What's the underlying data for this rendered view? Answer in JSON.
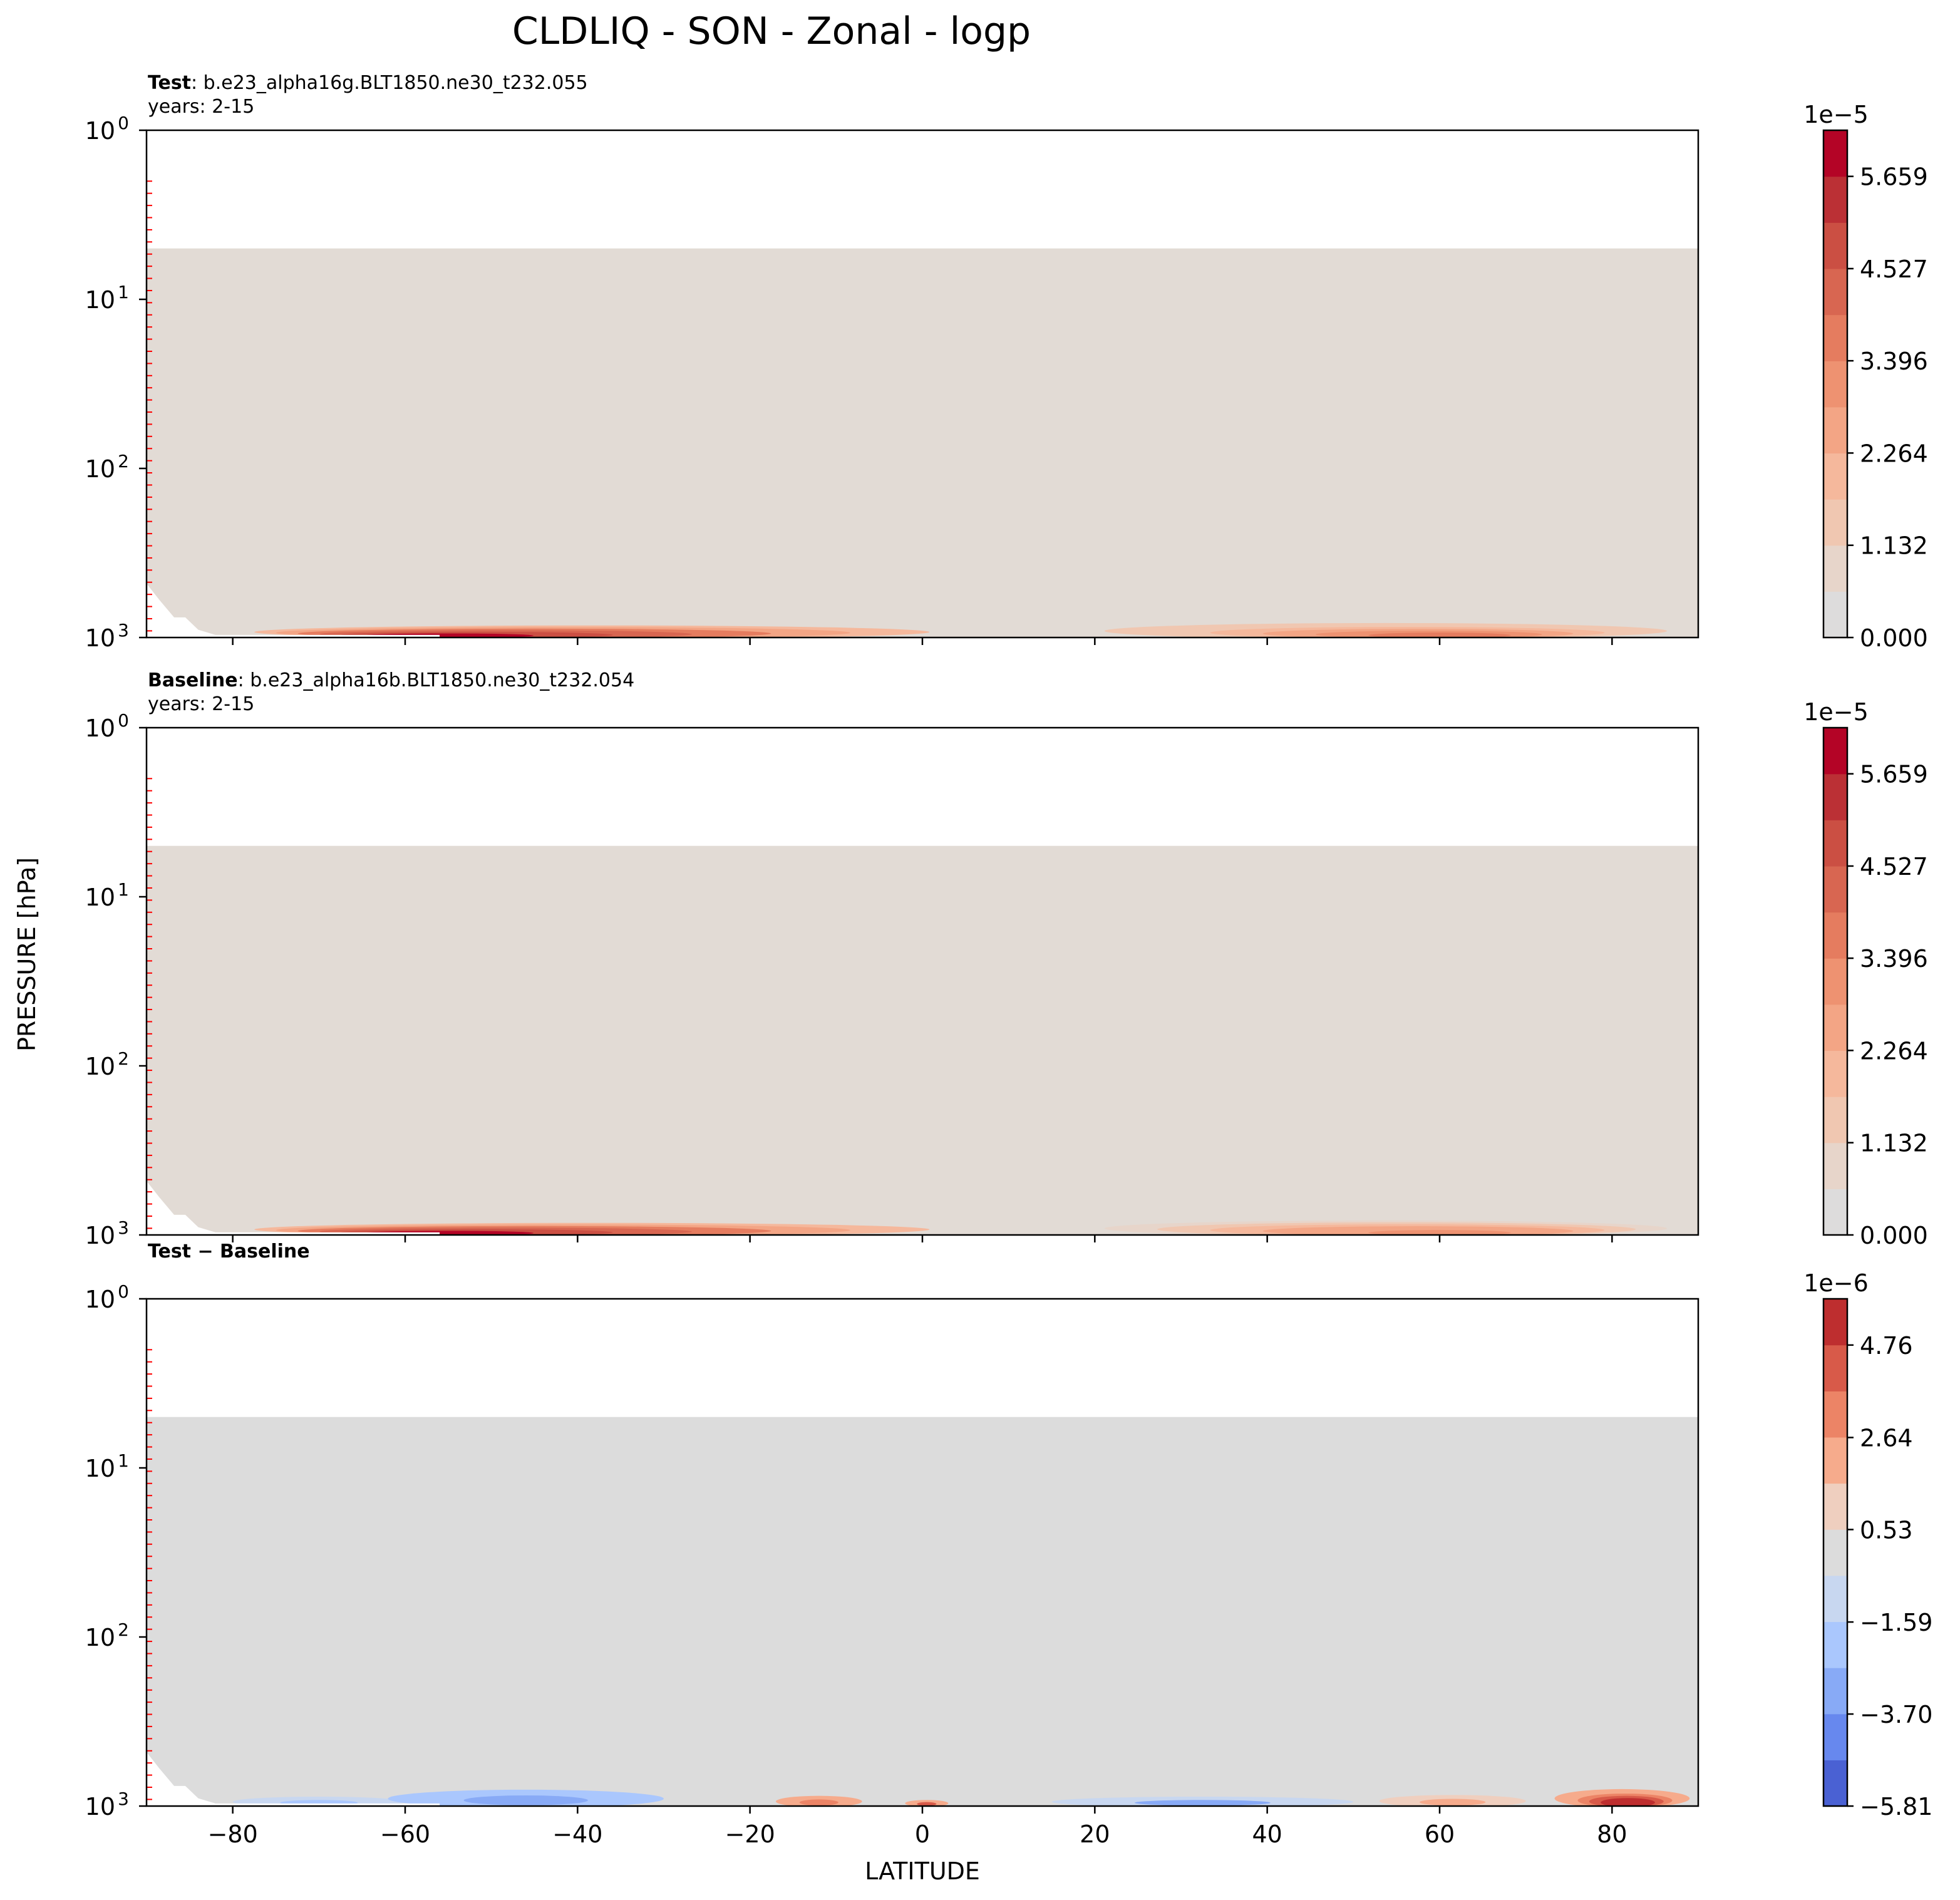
{
  "figure": {
    "title": "CLDLIQ - SON - Zonal - logp",
    "ylabel": "PRESSURE [hPa]",
    "xlabel": "LATITUDE"
  },
  "chart_data": [
    {
      "type": "heatmap",
      "panel": "test",
      "label_bold": "Test",
      "label_rest": ": b.e23_alpha16g.BLT1850.ne30_t232.055",
      "years": "years: 2-15",
      "x": [
        -90,
        90
      ],
      "y_scale": "log",
      "y_inverted": true,
      "ylim": [
        1,
        1000
      ],
      "y_ticks": [
        {
          "base": "10",
          "exp": "0"
        },
        {
          "base": "10",
          "exp": "1"
        },
        {
          "base": "10",
          "exp": "2"
        },
        {
          "base": "10",
          "exp": "3"
        }
      ],
      "x_ticks": [
        -80,
        -60,
        -40,
        -20,
        0,
        20,
        40,
        60,
        80
      ],
      "x_tick_labels_shown": false,
      "model_top_hpa": 5,
      "background_color": "#e2dbd5",
      "colorbar": {
        "multiplier": "1e−5",
        "ticks": [
          "5.659",
          "4.527",
          "3.396",
          "2.264",
          "1.132",
          "0.000"
        ],
        "tick_values": [
          5.659,
          4.527,
          3.396,
          2.264,
          1.132,
          0.0
        ],
        "range": [
          0,
          6.225
        ],
        "levels": 11,
        "colors": [
          "#dddcdc",
          "#e7d5ca",
          "#f0c7b1",
          "#f5b89c",
          "#f3a585",
          "#ee9271",
          "#e57c5f",
          "#d86651",
          "#cb4f43",
          "#bb3035",
          "#b40426"
        ]
      },
      "features": [
        {
          "lat_range": [
            -80,
            10
          ],
          "peak_lat": -55,
          "peak_value": 5.8,
          "pressure_range": [
            830,
            1000
          ]
        },
        {
          "lat_range": [
            15,
            90
          ],
          "peak_lat": 60,
          "peak_value": 3.4,
          "pressure_range": [
            800,
            1000
          ]
        }
      ]
    },
    {
      "type": "heatmap",
      "panel": "baseline",
      "label_bold": "Baseline",
      "label_rest": ": b.e23_alpha16b.BLT1850.ne30_t232.054",
      "years": "years: 2-15",
      "x": [
        -90,
        90
      ],
      "y_scale": "log",
      "y_inverted": true,
      "ylim": [
        1,
        1000
      ],
      "y_ticks": [
        {
          "base": "10",
          "exp": "0"
        },
        {
          "base": "10",
          "exp": "1"
        },
        {
          "base": "10",
          "exp": "2"
        },
        {
          "base": "10",
          "exp": "3"
        }
      ],
      "x_ticks": [
        -80,
        -60,
        -40,
        -20,
        0,
        20,
        40,
        60,
        80
      ],
      "x_tick_labels_shown": false,
      "model_top_hpa": 5,
      "background_color": "#e2dbd5",
      "colorbar": {
        "multiplier": "1e−5",
        "ticks": [
          "5.659",
          "4.527",
          "3.396",
          "2.264",
          "1.132",
          "0.000"
        ],
        "tick_values": [
          5.659,
          4.527,
          3.396,
          2.264,
          1.132,
          0.0
        ],
        "range": [
          0,
          6.225
        ],
        "levels": 11,
        "colors": [
          "#dddcdc",
          "#e7d5ca",
          "#f0c7b1",
          "#f5b89c",
          "#f3a585",
          "#ee9271",
          "#e57c5f",
          "#d86651",
          "#cb4f43",
          "#bb3035",
          "#b40426"
        ]
      },
      "features": [
        {
          "lat_range": [
            -80,
            10
          ],
          "peak_lat": -55,
          "peak_value": 5.7,
          "pressure_range": [
            830,
            1000
          ]
        },
        {
          "lat_range": [
            15,
            90
          ],
          "peak_lat": 60,
          "peak_value": 3.2,
          "pressure_range": [
            800,
            1000
          ]
        }
      ]
    },
    {
      "type": "heatmap",
      "panel": "difference",
      "label_bold": "Test − Baseline",
      "label_rest": "",
      "years": "",
      "x": [
        -90,
        90
      ],
      "y_scale": "log",
      "y_inverted": true,
      "ylim": [
        1,
        1000
      ],
      "y_ticks": [
        {
          "base": "10",
          "exp": "0"
        },
        {
          "base": "10",
          "exp": "1"
        },
        {
          "base": "10",
          "exp": "2"
        },
        {
          "base": "10",
          "exp": "3"
        }
      ],
      "x_ticks": [
        -80,
        -60,
        -40,
        -20,
        0,
        20,
        40,
        60,
        80
      ],
      "x_tick_labels_shown": true,
      "model_top_hpa": 5,
      "background_color": "#dcdcdc",
      "colorbar": {
        "multiplier": "1e−6",
        "ticks": [
          "4.76",
          "2.64",
          "0.53",
          "−1.59",
          "−3.70",
          "−5.81"
        ],
        "tick_values": [
          4.76,
          2.64,
          0.53,
          -1.59,
          -3.7,
          -5.81
        ],
        "range": [
          -5.81,
          5.82
        ],
        "levels": 11,
        "colors": [
          "#4a61d3",
          "#6788ee",
          "#88aaf6",
          "#aac7fd",
          "#c8d7f0",
          "#dcdcdc",
          "#efcfbf",
          "#f6ab8c",
          "#ec8466",
          "#d85a49",
          "#be2e2f"
        ]
      },
      "features": [
        {
          "lat_range": [
            -80,
            -60
          ],
          "value": -1.2,
          "pressure_range": [
            880,
            1000
          ]
        },
        {
          "lat_range": [
            -62,
            -30
          ],
          "value": -2.0,
          "pressure_range": [
            800,
            1000
          ]
        },
        {
          "lat_range": [
            -17,
            -7
          ],
          "value": 2.0,
          "pressure_range": [
            870,
            1000
          ]
        },
        {
          "lat_range": [
            -2,
            3
          ],
          "value": 2.6,
          "pressure_range": [
            920,
            1000
          ]
        },
        {
          "lat_range": [
            15,
            50
          ],
          "value": -1.5,
          "pressure_range": [
            880,
            1000
          ]
        },
        {
          "lat_range": [
            53,
            70
          ],
          "value": 1.2,
          "pressure_range": [
            860,
            1000
          ]
        },
        {
          "lat_range": [
            72,
            90
          ],
          "peak_lat": 82,
          "peak_value": 5.5,
          "pressure_range": [
            770,
            1000
          ]
        }
      ]
    }
  ]
}
